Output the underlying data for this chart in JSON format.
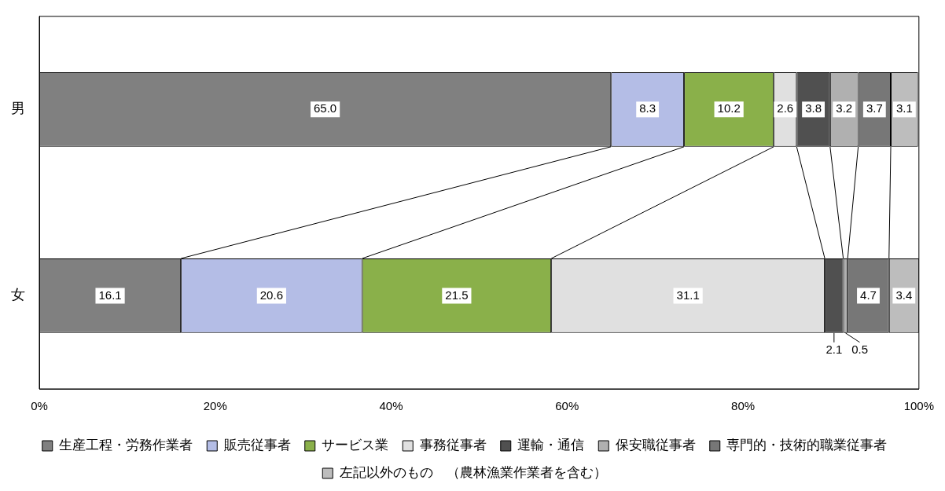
{
  "chart_data": {
    "type": "bar",
    "orientation": "horizontal",
    "stacked": true,
    "legend": "bottom",
    "categories": [
      "男",
      "女"
    ],
    "xlim": [
      0,
      100
    ],
    "xticks": [
      {
        "value": 0,
        "label": "0%"
      },
      {
        "value": 20,
        "label": "20%"
      },
      {
        "value": 40,
        "label": "40%"
      },
      {
        "value": 60,
        "label": "60%"
      },
      {
        "value": 80,
        "label": "80%"
      },
      {
        "value": 100,
        "label": "100%"
      }
    ],
    "series": [
      {
        "name": "生産工程・労務作業者",
        "color": "#808080",
        "values": [
          65.0,
          16.1
        ],
        "value_labels": [
          "65.0",
          "16.1"
        ]
      },
      {
        "name": "販売従事者",
        "color": "#b4bde6",
        "values": [
          8.3,
          20.6
        ],
        "value_labels": [
          "8.3",
          "20.6"
        ]
      },
      {
        "name": "サービス業",
        "color": "#8ab04a",
        "values": [
          10.2,
          21.5
        ],
        "value_labels": [
          "10.2",
          "21.5"
        ]
      },
      {
        "name": "事務従事者",
        "color": "#e0e0e0",
        "values": [
          2.6,
          31.1
        ],
        "value_labels": [
          "2.6",
          "31.1"
        ]
      },
      {
        "name": "運輸・通信",
        "color": "#505050",
        "values": [
          3.8,
          2.1
        ],
        "value_labels": [
          "3.8",
          "2.1"
        ]
      },
      {
        "name": "保安職従事者",
        "color": "#b0b0b0",
        "values": [
          3.2,
          0.5
        ],
        "value_labels": [
          "3.2",
          "0.5"
        ]
      },
      {
        "name": "専門的・技術的職業従事者",
        "color": "#777777",
        "values": [
          3.7,
          4.7
        ],
        "value_labels": [
          "3.7",
          "4.7"
        ]
      },
      {
        "name": "左記以外のもの　（農林漁業作業者を含む）",
        "color": "#bdbdbd",
        "values": [
          3.1,
          3.4
        ],
        "value_labels": [
          "3.1",
          "3.4"
        ]
      }
    ]
  }
}
